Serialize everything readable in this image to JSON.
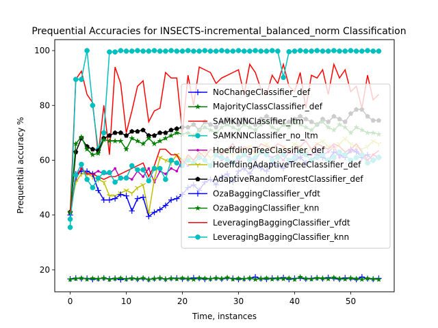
{
  "chart_data": {
    "type": "line",
    "title": "Prequential Accuracies for INSECTS-incremental_balanced_norm Classification",
    "xlabel": "Time, instances",
    "ylabel": "Prequential accuracy %",
    "xlim": [
      -2.75,
      57.75
    ],
    "ylim": [
      12,
      104
    ],
    "xticks": [
      0,
      10,
      20,
      30,
      40,
      50
    ],
    "yticks": [
      20,
      40,
      60,
      80,
      100
    ],
    "grid": false,
    "legend_position": "center-right",
    "series": [
      {
        "name": "NoChangeClassifier_def",
        "color": "#0000ff",
        "marker": "plus",
        "values": [
          16.7,
          17,
          16.8,
          16.9,
          16.5,
          16.8,
          17,
          16.7,
          16.9,
          16.4,
          16.8,
          17,
          16.6,
          16.9,
          16.5,
          16.8,
          17,
          16.6,
          16.9,
          17,
          16.7,
          16.8,
          17.1,
          16.9,
          16.6,
          16.8,
          17,
          16.7,
          17,
          16.9,
          16.5,
          16.8,
          16.9,
          17.4,
          16.8,
          16.6,
          17,
          16.9,
          17.2,
          16.5,
          16.9,
          17,
          16.7,
          16.9,
          17.1,
          16.8,
          17.2,
          16.9,
          16.6,
          17.1,
          16.9,
          16.5,
          17.4,
          16.8,
          16.6,
          16.9
        ]
      },
      {
        "name": "MajorityClassClassifier_def",
        "color": "#008000",
        "marker": "star",
        "values": [
          16.5,
          16.8,
          17,
          16.6,
          16.9,
          16.7,
          17,
          16.5,
          16.8,
          17,
          16.6,
          16.9,
          16.7,
          17,
          16.5,
          16.8,
          17,
          16.6,
          16.9,
          16.7,
          17,
          16.8,
          16.5,
          17,
          16.9,
          16.7,
          17,
          16.8,
          17.2,
          16.6,
          16.9,
          16.7,
          17,
          16.5,
          16.8,
          17,
          16.6,
          16.9,
          16.7,
          17,
          16.5,
          17.4,
          16.8,
          16.6,
          17,
          16.9,
          16.7,
          17.2,
          16.8,
          16.6,
          17,
          16.8,
          16.5,
          16.9,
          16.7,
          16.5
        ]
      },
      {
        "name": "SAMKNNClassifier_ltm",
        "color": "#ff0000",
        "marker": "none",
        "values": [
          40.5,
          89.5,
          92.5,
          84,
          81,
          62,
          80,
          62,
          94,
          88,
          70,
          78,
          87,
          89,
          74,
          78,
          79,
          92,
          90,
          90,
          70,
          91,
          80,
          94,
          93,
          92,
          88,
          90,
          91,
          92,
          93,
          84,
          95,
          92,
          86,
          84,
          91,
          88,
          95,
          87,
          85,
          92,
          79,
          91,
          90,
          93,
          84,
          95,
          90,
          93,
          85,
          87,
          79,
          91,
          82,
          84
        ]
      },
      {
        "name": "SAMKNNClassifier_no_ltm",
        "color": "#00bfbf",
        "marker": "circle",
        "values": [
          35.5,
          89.5,
          89.5,
          100,
          80,
          64,
          70,
          99.5,
          99.5,
          100,
          99.8,
          99.8,
          100,
          99.8,
          99.8,
          100,
          99.8,
          99.8,
          100,
          99.8,
          99.8,
          100,
          99.8,
          99.8,
          100,
          99.8,
          99.8,
          100,
          99.8,
          99.8,
          100,
          99.8,
          99.8,
          100,
          99.8,
          99.8,
          100,
          99.8,
          90.2,
          99.6,
          99.8,
          100,
          99.8,
          99.8,
          100,
          99.8,
          99.8,
          100,
          99.8,
          99.8,
          100,
          99.8,
          99.8,
          100,
          99.8,
          99.8
        ]
      },
      {
        "name": "HoeffdingTreeClassifier_def",
        "color": "#bf00bf",
        "marker": "point",
        "values": [
          41.5,
          53,
          57,
          55,
          55,
          56,
          55,
          55,
          57,
          53,
          54,
          53,
          56,
          54,
          57,
          52,
          56,
          55,
          57,
          56,
          60,
          58,
          59,
          61,
          60,
          58,
          62,
          60,
          61,
          59,
          60,
          62,
          61,
          60,
          63,
          62,
          61,
          62,
          60,
          63,
          62,
          61,
          63,
          62,
          64,
          62,
          63,
          65,
          61,
          62,
          63,
          64,
          61,
          60,
          62,
          61
        ]
      },
      {
        "name": "HoeffdingAdaptiveTreeClassifier_def",
        "color": "#bfbf00",
        "marker": "tri-down",
        "values": [
          41,
          52,
          55,
          55,
          54,
          53,
          52,
          47,
          47,
          48,
          49,
          48,
          50,
          51,
          40.5,
          53,
          61,
          60,
          59,
          62,
          60,
          61,
          60,
          62,
          63,
          61,
          62,
          64,
          63,
          62,
          63,
          64,
          65,
          62,
          64,
          66,
          64,
          63,
          65,
          64,
          66,
          65,
          63,
          64,
          66,
          67,
          65,
          64,
          66,
          68,
          66,
          65,
          64,
          65,
          67,
          66
        ]
      },
      {
        "name": "AdaptiveRandomForestClassifier_def",
        "color": "#000000",
        "marker": "pentagon",
        "values": [
          41,
          63,
          68,
          65,
          64,
          63.5,
          68,
          69,
          70,
          70,
          69,
          70.5,
          70.5,
          71,
          69,
          69,
          70,
          70,
          71,
          71.5,
          72,
          72,
          73,
          71,
          74,
          73,
          72,
          74,
          75,
          74,
          73,
          75,
          74,
          73,
          75,
          76,
          75,
          74,
          73,
          74,
          75,
          76,
          75,
          74,
          73,
          75,
          74,
          76,
          75,
          74,
          77,
          78.5,
          78.5,
          76,
          74.5,
          74.5
        ]
      },
      {
        "name": "OzaBaggingClassifier_vfdt",
        "color": "#0000ff",
        "marker": "plus",
        "values": [
          40,
          55,
          56,
          56,
          55,
          49,
          45.5,
          45.5,
          46,
          47.5,
          47,
          41.5,
          46,
          46.5,
          39.5,
          41,
          42,
          43.5,
          45.5,
          46,
          47.5,
          50,
          51,
          49,
          52,
          53,
          51,
          54,
          55,
          52,
          56,
          57,
          55,
          58,
          57,
          56,
          59,
          58,
          57,
          59,
          60,
          61,
          59,
          60,
          62,
          61,
          60,
          63,
          62,
          61,
          64,
          63,
          61,
          62,
          60,
          61
        ]
      },
      {
        "name": "OzaBaggingClassifier_knn",
        "color": "#008000",
        "marker": "star",
        "values": [
          41,
          66,
          68.5,
          64,
          62,
          62.5,
          67.5,
          67,
          67,
          67,
          64,
          68,
          67,
          66,
          68,
          66,
          67,
          68,
          69,
          70,
          69.5,
          70,
          69,
          71,
          72,
          71,
          70,
          72,
          73,
          72,
          71,
          73,
          72,
          71,
          73,
          74,
          72,
          71,
          73,
          72,
          74,
          73,
          72,
          71,
          73,
          74,
          72,
          71,
          73,
          72,
          70,
          72,
          71,
          70,
          70,
          69.5
        ]
      },
      {
        "name": "LeveragingBaggingClassifier_vfdt",
        "color": "#ff0000",
        "marker": "none",
        "values": [
          41,
          54,
          57,
          55,
          55,
          54,
          53,
          54,
          54,
          55,
          56,
          57,
          58,
          59,
          54,
          58,
          64,
          64,
          62,
          62,
          58,
          62,
          60,
          63,
          61,
          64,
          63,
          62,
          64,
          66,
          63,
          65,
          64,
          63,
          66,
          65,
          64,
          66,
          65,
          63,
          64,
          65,
          67,
          64,
          66,
          65,
          64,
          66,
          65,
          63,
          64,
          66,
          63,
          60,
          62,
          63.5
        ]
      },
      {
        "name": "LeveragingBaggingClassifier_knn",
        "color": "#00bfbf",
        "marker": "circle",
        "values": [
          38.5,
          54.5,
          58.5,
          53,
          50,
          53.5,
          55.5,
          55.5,
          52,
          53.5,
          53.5,
          58,
          56.5,
          56.5,
          52.5,
          57,
          57,
          53,
          60,
          59,
          58,
          60,
          59,
          61,
          60,
          58,
          62,
          61,
          60,
          59,
          61,
          62,
          60,
          61,
          63,
          62,
          60,
          61,
          62,
          60,
          61,
          63,
          62,
          60,
          61,
          62,
          60,
          61,
          63,
          62,
          60,
          61,
          62,
          59,
          60,
          61
        ]
      }
    ]
  }
}
